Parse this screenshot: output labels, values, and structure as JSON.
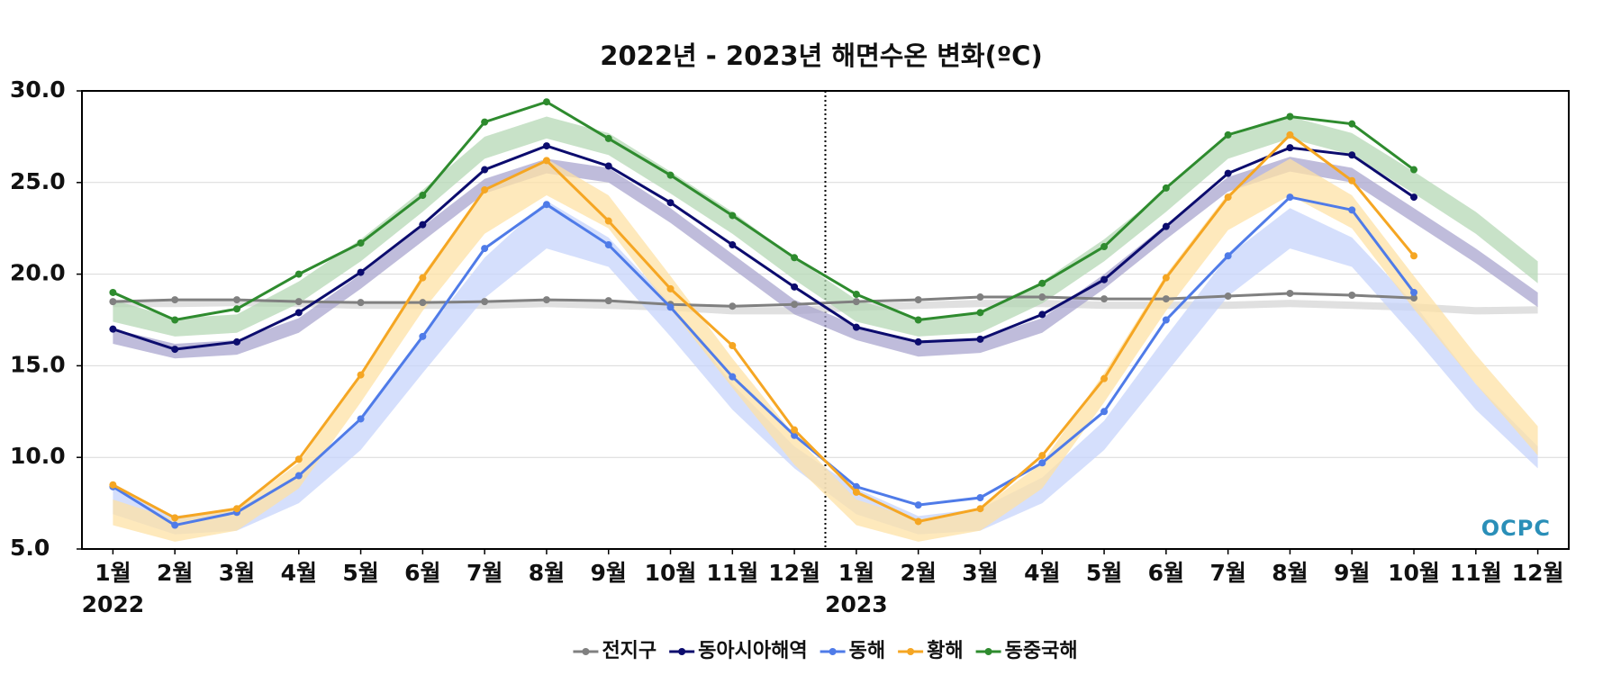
{
  "chart_data": {
    "type": "line",
    "title": "2022년 - 2023년 해면수온 변화(ºC)",
    "categories": [
      "1월",
      "2월",
      "3월",
      "4월",
      "5월",
      "6월",
      "7월",
      "8월",
      "9월",
      "10월",
      "11월",
      "12월",
      "1월",
      "2월",
      "3월",
      "4월",
      "5월",
      "6월",
      "7월",
      "8월",
      "9월",
      "10월",
      "11월",
      "12월"
    ],
    "years": [
      "2022",
      "2023"
    ],
    "logo": "OCPC",
    "ylim": [
      5,
      30
    ],
    "yticks": [
      {
        "value": 5,
        "label": "5.0"
      },
      {
        "value": 10,
        "label": "10.0"
      },
      {
        "value": 15,
        "label": "15.0"
      },
      {
        "value": 20,
        "label": "20.0"
      },
      {
        "value": 25,
        "label": "25.0"
      },
      {
        "value": 30,
        "label": "30.0"
      }
    ],
    "grid": true,
    "legend": "bottom",
    "series": [
      {
        "name": "전지구",
        "color": "#808080",
        "band_color": "#d6d6d6",
        "values": [
          18.5,
          18.6,
          18.6,
          18.5,
          18.45,
          18.45,
          18.5,
          18.6,
          18.55,
          18.35,
          18.25,
          18.35,
          18.5,
          18.6,
          18.75,
          18.75,
          18.65,
          18.65,
          18.8,
          18.95,
          18.85,
          18.7,
          null,
          null
        ],
        "band_lower": [
          18.2,
          18.2,
          18.25,
          18.2,
          18.1,
          18.1,
          18.1,
          18.2,
          18.1,
          18.0,
          17.8,
          17.8,
          18.0,
          18.1,
          18.2,
          18.2,
          18.1,
          18.1,
          18.1,
          18.2,
          18.1,
          18.0,
          17.8,
          17.85
        ],
        "band_upper": [
          18.6,
          18.6,
          18.65,
          18.6,
          18.5,
          18.5,
          18.5,
          18.6,
          18.5,
          18.4,
          18.2,
          18.2,
          18.4,
          18.5,
          18.6,
          18.6,
          18.5,
          18.5,
          18.5,
          18.6,
          18.5,
          18.4,
          18.2,
          18.25
        ]
      },
      {
        "name": "동아시아해역",
        "color": "#0c0c6e",
        "band_color": "#a9a6cf",
        "values": [
          17.0,
          15.9,
          16.3,
          17.9,
          20.1,
          22.7,
          25.7,
          27.0,
          25.9,
          23.9,
          21.6,
          19.3,
          17.1,
          16.3,
          16.45,
          17.8,
          19.7,
          22.6,
          25.5,
          26.9,
          26.5,
          24.2,
          null,
          null
        ],
        "band_lower": [
          16.2,
          15.4,
          15.6,
          16.8,
          19.2,
          21.8,
          24.4,
          25.5,
          25.0,
          22.8,
          20.3,
          17.8,
          16.4,
          15.5,
          15.7,
          16.8,
          19.2,
          21.9,
          24.5,
          25.6,
          25.0,
          22.8,
          20.6,
          18.2
        ],
        "band_upper": [
          17.0,
          16.2,
          16.4,
          17.6,
          20.0,
          22.6,
          25.2,
          26.3,
          25.8,
          23.6,
          21.1,
          18.6,
          17.2,
          16.3,
          16.5,
          17.6,
          20.0,
          22.7,
          25.3,
          26.4,
          25.8,
          23.6,
          21.4,
          19.0
        ]
      },
      {
        "name": "동해",
        "color": "#4f7be8",
        "band_color": "#c7d4fb",
        "values": [
          8.4,
          6.3,
          7.0,
          9.0,
          12.1,
          16.6,
          21.4,
          23.8,
          21.6,
          18.2,
          14.4,
          11.2,
          8.4,
          7.4,
          7.8,
          9.7,
          12.5,
          17.5,
          21.0,
          24.2,
          23.5,
          19.0,
          null,
          null
        ],
        "band_lower": [
          6.9,
          5.8,
          6.0,
          7.5,
          10.4,
          14.6,
          18.7,
          21.4,
          20.4,
          16.6,
          12.6,
          9.4,
          6.9,
          5.8,
          6.0,
          7.5,
          10.4,
          14.6,
          18.8,
          21.4,
          20.4,
          16.6,
          12.6,
          9.4
        ],
        "band_upper": [
          8.3,
          6.8,
          7.2,
          8.9,
          12.0,
          16.6,
          20.9,
          24.0,
          22.0,
          18.4,
          14.0,
          10.6,
          8.3,
          6.8,
          7.2,
          8.9,
          12.0,
          16.6,
          21.0,
          23.6,
          22.0,
          18.4,
          14.0,
          10.6
        ]
      },
      {
        "name": "황해",
        "color": "#f5a623",
        "band_color": "#fde2a6",
        "values": [
          8.5,
          6.7,
          7.2,
          9.9,
          14.5,
          19.8,
          24.6,
          26.2,
          22.9,
          19.2,
          16.1,
          11.5,
          8.1,
          6.5,
          7.2,
          10.1,
          14.3,
          19.8,
          24.2,
          27.6,
          25.1,
          21.0,
          null,
          null
        ],
        "band_lower": [
          6.3,
          5.4,
          6.0,
          8.3,
          13.0,
          18.0,
          22.2,
          24.3,
          22.5,
          18.1,
          13.8,
          9.6,
          6.3,
          5.4,
          6.0,
          8.3,
          13.0,
          18.0,
          22.4,
          24.3,
          22.5,
          18.1,
          14.0,
          10.1
        ],
        "band_upper": [
          7.7,
          6.6,
          7.2,
          9.7,
          14.6,
          20.0,
          24.6,
          26.3,
          24.3,
          19.9,
          15.4,
          11.2,
          7.7,
          6.6,
          7.2,
          9.7,
          14.6,
          20.0,
          24.4,
          26.3,
          24.3,
          19.9,
          15.6,
          11.7
        ]
      },
      {
        "name": "동중국해",
        "color": "#2e8b2e",
        "band_color": "#b6d8b6",
        "values": [
          19.0,
          17.5,
          18.1,
          20.0,
          21.7,
          24.3,
          28.3,
          29.4,
          27.4,
          25.4,
          23.2,
          20.9,
          18.9,
          17.5,
          17.9,
          19.5,
          21.5,
          24.7,
          27.6,
          28.6,
          28.2,
          25.7,
          null,
          null
        ],
        "band_lower": [
          17.4,
          16.6,
          16.8,
          18.4,
          20.7,
          23.4,
          26.3,
          27.4,
          26.5,
          24.4,
          22.2,
          19.7,
          17.4,
          16.6,
          16.8,
          18.4,
          20.7,
          23.4,
          26.3,
          27.4,
          26.5,
          24.4,
          22.2,
          19.5
        ],
        "band_upper": [
          18.6,
          17.6,
          17.8,
          19.6,
          21.9,
          24.6,
          27.5,
          28.6,
          27.7,
          25.6,
          23.4,
          20.9,
          18.6,
          17.6,
          17.8,
          19.6,
          21.9,
          24.6,
          27.5,
          28.6,
          27.7,
          25.6,
          23.4,
          20.7
        ]
      }
    ]
  }
}
